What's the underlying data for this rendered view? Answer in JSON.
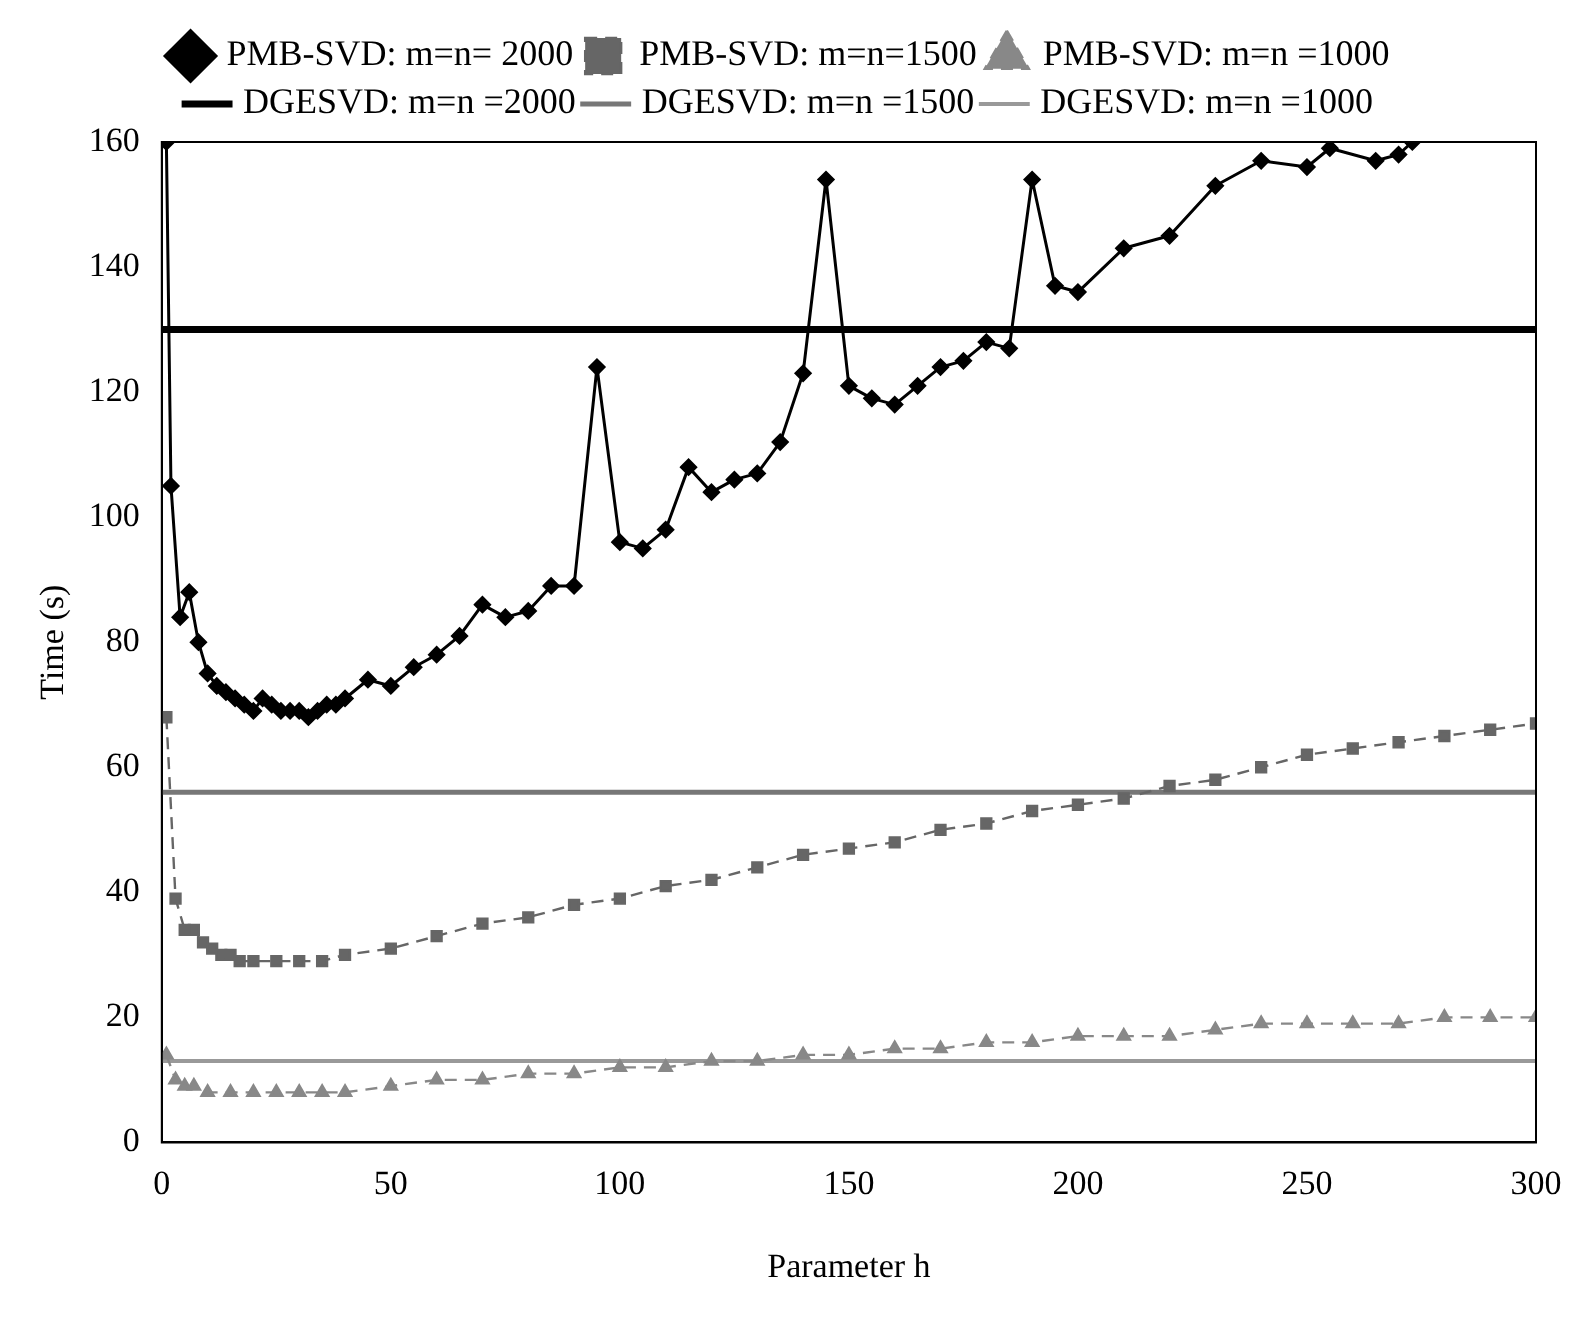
{
  "chart_data": {
    "type": "line",
    "xlabel": "Parameter h",
    "ylabel": "Time (s)",
    "xlim": [
      0,
      300
    ],
    "ylim": [
      0,
      160
    ],
    "xticks": [
      0,
      50,
      100,
      150,
      200,
      250,
      300
    ],
    "yticks": [
      0,
      20,
      40,
      60,
      80,
      100,
      120,
      140,
      160
    ],
    "grid": false,
    "legend": "top",
    "series": [
      {
        "name": "PMB-SVD: m=n= 2000",
        "color": "#000000",
        "marker": "diamond",
        "line_style": "solid",
        "x": [
          1,
          2,
          4,
          6,
          8,
          10,
          12,
          14,
          16,
          18,
          20,
          22,
          24,
          26,
          28,
          30,
          32,
          34,
          36,
          38,
          40,
          45,
          50,
          55,
          60,
          65,
          70,
          75,
          80,
          85,
          90,
          95,
          100,
          105,
          110,
          115,
          120,
          125,
          130,
          135,
          140,
          145,
          150,
          155,
          160,
          165,
          170,
          175,
          180,
          185,
          190,
          195,
          200,
          210,
          220,
          230,
          240,
          250,
          255,
          265,
          270,
          273
        ],
        "values": [
          160,
          105,
          84,
          88,
          80,
          75,
          73,
          72,
          71,
          70,
          69,
          71,
          70,
          69,
          69,
          69,
          68,
          69,
          70,
          70,
          71,
          74,
          73,
          76,
          78,
          81,
          86,
          84,
          85,
          89,
          89,
          124,
          96,
          95,
          98,
          108,
          104,
          106,
          107,
          112,
          123,
          154,
          121,
          119,
          118,
          121,
          124,
          125,
          128,
          127,
          154,
          137,
          136,
          143,
          145,
          153,
          157,
          156,
          159,
          157,
          158,
          160
        ]
      },
      {
        "name": "PMB-SVD: m=n=1500",
        "color": "#666666",
        "marker": "square",
        "line_style": "dashed",
        "x": [
          1,
          3,
          5,
          7,
          9,
          11,
          13,
          15,
          17,
          20,
          25,
          30,
          35,
          40,
          50,
          60,
          70,
          80,
          90,
          100,
          110,
          120,
          130,
          140,
          150,
          160,
          170,
          180,
          190,
          200,
          210,
          220,
          230,
          240,
          250,
          260,
          270,
          280,
          290,
          300
        ],
        "values": [
          68,
          39,
          34,
          34,
          32,
          31,
          30,
          30,
          29,
          29,
          29,
          29,
          29,
          30,
          31,
          33,
          35,
          36,
          38,
          39,
          41,
          42,
          44,
          46,
          47,
          48,
          50,
          51,
          53,
          54,
          55,
          57,
          58,
          60,
          62,
          63,
          64,
          65,
          66,
          67
        ]
      },
      {
        "name": "PMB-SVD: m=n =1000",
        "color": "#888888",
        "marker": "triangle",
        "line_style": "dashed",
        "x": [
          1,
          3,
          5,
          7,
          10,
          15,
          20,
          25,
          30,
          35,
          40,
          50,
          60,
          70,
          80,
          90,
          100,
          110,
          120,
          130,
          140,
          150,
          160,
          170,
          180,
          190,
          200,
          210,
          220,
          230,
          240,
          250,
          260,
          270,
          280,
          290,
          300
        ],
        "values": [
          14,
          10,
          9,
          9,
          8,
          8,
          8,
          8,
          8,
          8,
          8,
          9,
          10,
          10,
          11,
          11,
          12,
          12,
          13,
          13,
          14,
          14,
          15,
          15,
          16,
          16,
          17,
          17,
          17,
          18,
          19,
          19,
          19,
          19,
          20,
          20,
          20
        ]
      },
      {
        "name": "DGESVD: m=n =2000",
        "color": "#000000",
        "marker": "none",
        "line_style": "solid",
        "x": [
          0,
          300
        ],
        "values": [
          130,
          130
        ]
      },
      {
        "name": "DGESVD: m=n =1500",
        "color": "#777777",
        "marker": "none",
        "line_style": "solid",
        "x": [
          0,
          300
        ],
        "values": [
          56,
          56
        ]
      },
      {
        "name": "DGESVD: m=n =1000",
        "color": "#999999",
        "marker": "none",
        "line_style": "solid",
        "x": [
          0,
          300
        ],
        "values": [
          13,
          13
        ]
      }
    ]
  }
}
